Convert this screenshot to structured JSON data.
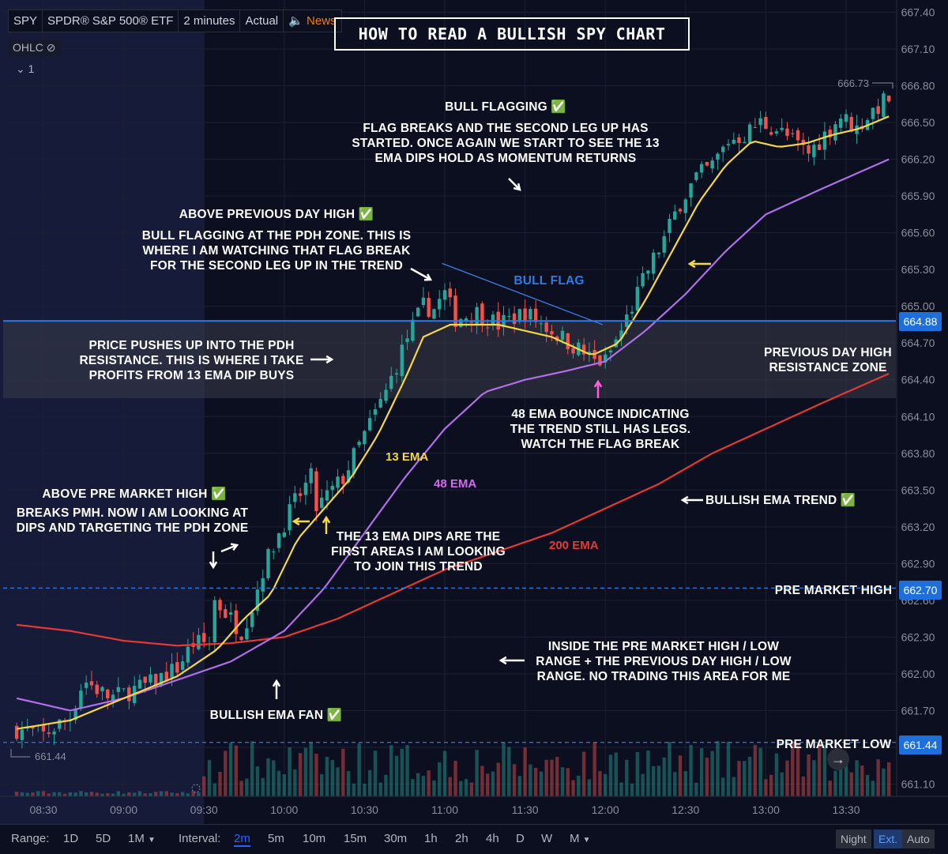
{
  "header": {
    "symbol": "SPY",
    "name": "SPDR® S&P 500® ETF",
    "interval": "2 minutes",
    "mode": "Actual",
    "news": "News",
    "ohlc": "OHLC",
    "pane_count": "1"
  },
  "title": "HOW TO READ A BULLISH SPY CHART",
  "colors": {
    "background": "#0c0f1f",
    "premarket_shade": "#1a1f3d",
    "bull": "#26a69a",
    "bear": "#ef5350",
    "ema13": "#f5d742",
    "ema48": "#b06fe8",
    "ema200": "#e53935",
    "pdh_line": "#2f7be6",
    "pm_lines": "#2f7be6"
  },
  "chart_data": {
    "type": "candlestick",
    "symbol": "SPY",
    "interval": "2 minutes",
    "ylim": [
      661.0,
      667.5
    ],
    "yticks": [
      661.1,
      661.4,
      661.7,
      662.0,
      662.3,
      662.6,
      662.9,
      663.2,
      663.5,
      663.8,
      664.1,
      664.4,
      664.7,
      665.0,
      665.3,
      665.6,
      665.9,
      666.2,
      666.5,
      666.8,
      667.1,
      667.4
    ],
    "xticks": [
      "08:30",
      "09:00",
      "09:30",
      "10:00",
      "10:30",
      "11:00",
      "11:30",
      "12:00",
      "12:30",
      "13:00",
      "13:30"
    ],
    "xtick_minutes": [
      510,
      540,
      570,
      600,
      630,
      660,
      690,
      720,
      750,
      780,
      810
    ],
    "session_start_minute": 570,
    "pdh_zone": [
      664.25,
      664.88
    ],
    "levels": [
      {
        "name": "PDH",
        "value": 664.88
      },
      {
        "name": "PRE MARKET HIGH",
        "value": 662.7
      },
      {
        "name": "PRE MARKET LOW",
        "value": 661.44
      }
    ],
    "price_markers": {
      "high": 666.73,
      "low": 661.44
    },
    "close_path": [
      [
        500,
        661.55
      ],
      [
        510,
        661.5
      ],
      [
        520,
        661.65
      ],
      [
        525,
        661.95
      ],
      [
        535,
        661.8
      ],
      [
        550,
        661.92
      ],
      [
        560,
        662.05
      ],
      [
        566,
        662.25
      ],
      [
        572,
        662.25
      ],
      [
        574,
        662.6
      ],
      [
        580,
        662.45
      ],
      [
        584,
        662.35
      ],
      [
        588,
        662.55
      ],
      [
        592,
        662.85
      ],
      [
        598,
        663.15
      ],
      [
        604,
        663.4
      ],
      [
        610,
        663.6
      ],
      [
        612,
        663.35
      ],
      [
        616,
        663.45
      ],
      [
        622,
        663.6
      ],
      [
        630,
        663.95
      ],
      [
        638,
        664.3
      ],
      [
        646,
        664.75
      ],
      [
        652,
        665.0
      ],
      [
        656,
        664.98
      ],
      [
        660,
        665.1
      ],
      [
        664,
        664.9
      ],
      [
        672,
        664.95
      ],
      [
        680,
        664.85
      ],
      [
        690,
        664.95
      ],
      [
        700,
        664.8
      ],
      [
        710,
        664.65
      ],
      [
        716,
        664.55
      ],
      [
        720,
        664.55
      ],
      [
        726,
        664.8
      ],
      [
        730,
        665.0
      ],
      [
        736,
        665.3
      ],
      [
        742,
        665.55
      ],
      [
        748,
        665.85
      ],
      [
        754,
        666.05
      ],
      [
        760,
        666.15
      ],
      [
        766,
        666.35
      ],
      [
        772,
        666.4
      ],
      [
        778,
        666.5
      ],
      [
        784,
        666.45
      ],
      [
        790,
        666.35
      ],
      [
        796,
        666.25
      ],
      [
        802,
        666.4
      ],
      [
        808,
        666.55
      ],
      [
        814,
        666.45
      ],
      [
        820,
        666.6
      ],
      [
        826,
        666.7
      ]
    ],
    "ema13_path": [
      [
        500,
        661.55
      ],
      [
        520,
        661.62
      ],
      [
        540,
        661.8
      ],
      [
        560,
        661.98
      ],
      [
        575,
        662.2
      ],
      [
        585,
        662.45
      ],
      [
        595,
        662.65
      ],
      [
        605,
        663.1
      ],
      [
        615,
        663.35
      ],
      [
        625,
        663.6
      ],
      [
        635,
        663.95
      ],
      [
        645,
        664.4
      ],
      [
        652,
        664.75
      ],
      [
        662,
        664.85
      ],
      [
        680,
        664.85
      ],
      [
        700,
        664.75
      ],
      [
        715,
        664.6
      ],
      [
        725,
        664.7
      ],
      [
        735,
        665.05
      ],
      [
        745,
        665.45
      ],
      [
        755,
        665.85
      ],
      [
        765,
        666.15
      ],
      [
        775,
        666.35
      ],
      [
        785,
        666.3
      ],
      [
        795,
        666.33
      ],
      [
        805,
        666.4
      ],
      [
        815,
        666.45
      ],
      [
        826,
        666.55
      ]
    ],
    "ema48_path": [
      [
        500,
        661.8
      ],
      [
        520,
        661.7
      ],
      [
        540,
        661.8
      ],
      [
        560,
        661.95
      ],
      [
        580,
        662.1
      ],
      [
        600,
        662.35
      ],
      [
        615,
        662.7
      ],
      [
        630,
        663.15
      ],
      [
        645,
        663.6
      ],
      [
        660,
        664.0
      ],
      [
        675,
        664.3
      ],
      [
        690,
        664.4
      ],
      [
        705,
        664.47
      ],
      [
        720,
        664.55
      ],
      [
        735,
        664.8
      ],
      [
        750,
        665.1
      ],
      [
        765,
        665.45
      ],
      [
        780,
        665.75
      ],
      [
        800,
        665.95
      ],
      [
        826,
        666.2
      ]
    ],
    "ema200_path": [
      [
        500,
        662.4
      ],
      [
        520,
        662.35
      ],
      [
        540,
        662.27
      ],
      [
        560,
        662.23
      ],
      [
        580,
        662.25
      ],
      [
        600,
        662.3
      ],
      [
        620,
        662.45
      ],
      [
        640,
        662.65
      ],
      [
        660,
        662.85
      ],
      [
        680,
        663.0
      ],
      [
        700,
        663.15
      ],
      [
        720,
        663.35
      ],
      [
        740,
        663.55
      ],
      [
        760,
        663.8
      ],
      [
        780,
        664.0
      ],
      [
        800,
        664.2
      ],
      [
        826,
        664.45
      ]
    ],
    "series": [
      {
        "name": "13 EMA"
      },
      {
        "name": "48 EMA"
      },
      {
        "name": "200 EMA"
      }
    ],
    "trendline": [
      [
        659,
        665.35
      ],
      [
        719,
        664.85
      ]
    ],
    "current_label": "666.73"
  },
  "annotations": {
    "bull_flag": "BULL FLAG",
    "bull_flagging_title": "BULL FLAGGING ✅",
    "bull_flagging_body": "FLAG BREAKS AND THE SECOND LEG UP HAS STARTED. ONCE AGAIN WE START TO SEE THE 13 EMA DIPS HOLD AS MOMENTUM RETURNS",
    "above_pdh_title": "ABOVE PREVIOUS DAY HIGH ✅",
    "above_pdh_body": "BULL FLAGGING AT THE PDH ZONE. THIS IS WHERE I AM WATCHING THAT FLAG BREAK FOR THE SECOND LEG UP IN THE TREND",
    "pdh_resistance": "PRICE PUSHES UP INTO THE PDH RESISTANCE. THIS IS WHERE I TAKE PROFITS FROM 13 EMA DIP BUYS",
    "pdh_zone": "PREVIOUS DAY HIGH RESISTANCE ZONE",
    "ema48_bounce": "48 EMA BOUNCE INDICATING THE TREND STILL HAS LEGS. WATCH THE FLAG BREAK",
    "above_pmh_title": "ABOVE PRE MARKET HIGH ✅",
    "above_pmh_body": "BREAKS PMH. NOW I AM LOOKING AT DIPS AND TARGETING THE PDH ZONE",
    "ema13_dips": "THE 13 EMA DIPS ARE THE FIRST AREAS I AM LOOKING TO JOIN THIS TREND",
    "bullish_trend": "BULLISH EMA TREND ✅",
    "bullish_fan": "BULLISH EMA FAN ✅",
    "inside_range": "INSIDE THE PRE MARKET HIGH / LOW RANGE + THE PREVIOUS DAY HIGH / LOW RANGE. NO TRADING THIS AREA FOR ME",
    "pmh": "PRE MARKET HIGH",
    "pml": "PRE MARKET LOW",
    "ema13": "13 EMA",
    "ema48": "48 EMA",
    "ema200": "200 EMA"
  },
  "bottom_bar": {
    "range_label": "Range:",
    "ranges": [
      "1D",
      "5D",
      "1M"
    ],
    "interval_label": "Interval:",
    "intervals": [
      "2m",
      "5m",
      "10m",
      "15m",
      "30m",
      "1h",
      "2h",
      "4h",
      "D",
      "W",
      "M"
    ],
    "active_interval": "2m",
    "night": "Night",
    "ext": "Ext.",
    "auto": "Auto"
  }
}
